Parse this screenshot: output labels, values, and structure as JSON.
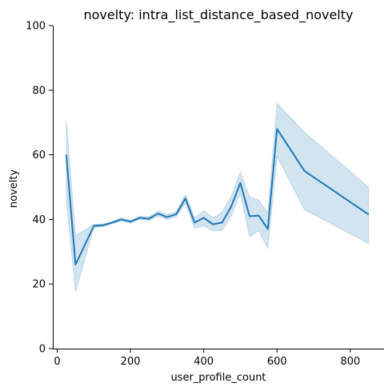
{
  "chart_data": {
    "type": "line",
    "title": "novelty: intra_list_distance_based_novelty",
    "xlabel": "user_profile_count",
    "ylabel": "novelty",
    "xlim": [
      -12,
      892
    ],
    "ylim": [
      0,
      100
    ],
    "x_ticks": [
      0,
      200,
      400,
      600,
      800
    ],
    "y_ticks": [
      0,
      20,
      40,
      60,
      80,
      100
    ],
    "grid": false,
    "series": [
      {
        "color": "#1f77b4",
        "band_color": "#1f77b4",
        "points": [
          {
            "x": 25,
            "y": 60,
            "lo": 46,
            "hi": 70.5
          },
          {
            "x": 50,
            "y": 26,
            "lo": 17.5,
            "hi": 35
          },
          {
            "x": 100,
            "y": 38,
            "lo": 37.5,
            "hi": 38.5
          },
          {
            "x": 125,
            "y": 38.2,
            "lo": 37.8,
            "hi": 38.6
          },
          {
            "x": 150,
            "y": 39,
            "lo": 38.6,
            "hi": 39.4
          },
          {
            "x": 175,
            "y": 40,
            "lo": 39.5,
            "hi": 40.5
          },
          {
            "x": 200,
            "y": 39.3,
            "lo": 38.8,
            "hi": 39.8
          },
          {
            "x": 225,
            "y": 40.5,
            "lo": 40,
            "hi": 41
          },
          {
            "x": 250,
            "y": 40.2,
            "lo": 39.6,
            "hi": 40.8
          },
          {
            "x": 275,
            "y": 41.8,
            "lo": 41,
            "hi": 42.6
          },
          {
            "x": 300,
            "y": 40.7,
            "lo": 40,
            "hi": 41.5
          },
          {
            "x": 325,
            "y": 41.6,
            "lo": 40.8,
            "hi": 42.4
          },
          {
            "x": 350,
            "y": 46.5,
            "lo": 45,
            "hi": 47.8
          },
          {
            "x": 375,
            "y": 39,
            "lo": 37.2,
            "hi": 40.5
          },
          {
            "x": 400,
            "y": 40.5,
            "lo": 38,
            "hi": 42.7
          },
          {
            "x": 425,
            "y": 38.5,
            "lo": 36.5,
            "hi": 40.5
          },
          {
            "x": 450,
            "y": 39,
            "lo": 36.5,
            "hi": 42.3
          },
          {
            "x": 475,
            "y": 44,
            "lo": 41,
            "hi": 47
          },
          {
            "x": 500,
            "y": 51.3,
            "lo": 48,
            "hi": 54.7
          },
          {
            "x": 525,
            "y": 41,
            "lo": 34.5,
            "hi": 47
          },
          {
            "x": 550,
            "y": 41.2,
            "lo": 36.5,
            "hi": 46
          },
          {
            "x": 575,
            "y": 37,
            "lo": 31,
            "hi": 42
          },
          {
            "x": 600,
            "y": 68,
            "lo": 59.5,
            "hi": 76
          },
          {
            "x": 675,
            "y": 55,
            "lo": 43,
            "hi": 67
          },
          {
            "x": 850,
            "y": 41.5,
            "lo": 32.5,
            "hi": 50
          }
        ]
      }
    ]
  }
}
